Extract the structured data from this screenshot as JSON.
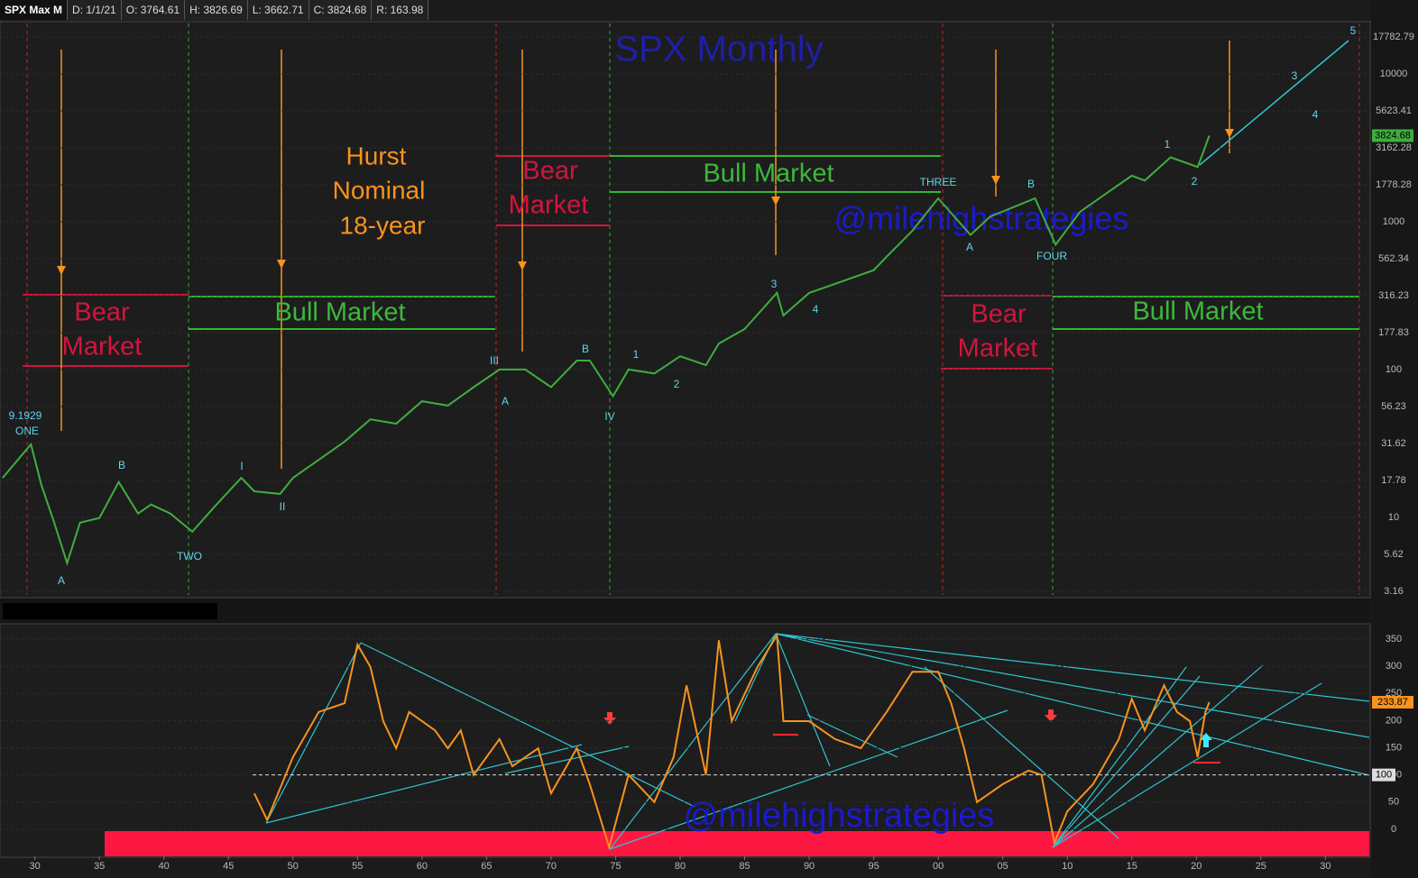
{
  "header": {
    "symbol": "SPX Max M",
    "fields": [
      "D: 1/1/21",
      "O: 3764.61",
      "H: 3826.69",
      "L: 3662.71",
      "C: 3824.68",
      "R: 163.98"
    ]
  },
  "chart_data": [
    {
      "type": "line",
      "title": "SPX Monthly",
      "watermark": "@milehighstrategies",
      "log_scale": true,
      "grid": true,
      "color": "#3fae3f",
      "xlim": [
        1927.3,
        2033.4
      ],
      "ylim": [
        2.9,
        22600
      ],
      "yticks": [
        3.16,
        5.62,
        10,
        17.78,
        31.62,
        56.23,
        100,
        177.83,
        316.23,
        562.34,
        1000,
        1778.28,
        3162.28,
        5623.41,
        10000,
        17782.79
      ],
      "x": [
        1927.5,
        1929.7,
        1930.5,
        1931.5,
        1932.5,
        1933.5,
        1935,
        1936.5,
        1938,
        1939,
        1940.5,
        1942.2,
        1944,
        1946,
        1947,
        1949,
        1950,
        1952,
        1954,
        1956,
        1958,
        1960,
        1962,
        1964,
        1966,
        1968,
        1970,
        1972,
        1973,
        1974.8,
        1976,
        1978,
        1980,
        1982,
        1983,
        1985,
        1987.5,
        1988,
        1990,
        1992,
        1995,
        1996,
        1998,
        2000,
        2002.5,
        2004,
        2007.5,
        2009.1,
        2011,
        2013,
        2015,
        2016,
        2018,
        2020.1,
        2020.5,
        2021
      ],
      "values": [
        18.5,
        31.2,
        16.6,
        9.2,
        4.9,
        9.2,
        9.9,
        17.3,
        10.6,
        12.2,
        10.6,
        8,
        12,
        18.5,
        15,
        14.4,
        18.5,
        24.5,
        32.5,
        46,
        43,
        61,
        57,
        76,
        100,
        100,
        76,
        115,
        115,
        66,
        100,
        94,
        123,
        107,
        150,
        188,
        330,
        232,
        330,
        380,
        470,
        580,
        870,
        1440,
        815,
        1080,
        1440,
        700,
        1170,
        1550,
        2050,
        1900,
        2730,
        2350,
        2900,
        3824.68
      ],
      "annotations": [
        "Hurst",
        "Nominal",
        "18-year",
        "Bear",
        "Market",
        "Bull Market",
        "Bear",
        "Market",
        "Bull Market",
        "Bear",
        "Market",
        "Bull Market",
        "9.1929",
        "ONE",
        "A",
        "B",
        "TWO",
        "I",
        "II",
        "III",
        "A",
        "B",
        "IV",
        "1",
        "2",
        "3",
        "4",
        "THREE",
        "A",
        "B",
        "FOUR",
        "1",
        "2",
        "3",
        "4",
        "5"
      ]
    },
    {
      "type": "line",
      "watermark": "@milehighstrategies",
      "grid": true,
      "color": "#f7931e",
      "reference_line": 100,
      "xlim": [
        1927.3,
        2033.4
      ],
      "ylim": [
        -50,
        370
      ],
      "xticks": [
        {
          "value": 1930,
          "label": "30"
        },
        {
          "value": 1935,
          "label": "35"
        },
        {
          "value": 1940,
          "label": "40"
        },
        {
          "value": 1945,
          "label": "45"
        },
        {
          "value": 1950,
          "label": "50"
        },
        {
          "value": 1955,
          "label": "55"
        },
        {
          "value": 1960,
          "label": "60"
        },
        {
          "value": 1965,
          "label": "65"
        },
        {
          "value": 1970,
          "label": "70"
        },
        {
          "value": 1975,
          "label": "75"
        },
        {
          "value": 1980,
          "label": "80"
        },
        {
          "value": 1985,
          "label": "85"
        },
        {
          "value": 1990,
          "label": "90"
        },
        {
          "value": 1995,
          "label": "95"
        },
        {
          "value": 2000,
          "label": "00"
        },
        {
          "value": 2005,
          "label": "05"
        },
        {
          "value": 2010,
          "label": "10"
        },
        {
          "value": 2015,
          "label": "15"
        },
        {
          "value": 2020,
          "label": "20"
        },
        {
          "value": 2025,
          "label": "25"
        },
        {
          "value": 2030,
          "label": "30"
        }
      ],
      "yticks": [
        0,
        50,
        100,
        150,
        200,
        250,
        300,
        350
      ],
      "x": [
        1947,
        1948,
        1950,
        1952,
        1954,
        1955,
        1956,
        1957,
        1958,
        1959,
        1961,
        1962,
        1963,
        1964,
        1966,
        1967,
        1969,
        1970,
        1972,
        1973,
        1974.5,
        1976,
        1978,
        1979.5,
        1980.5,
        1982,
        1983,
        1984,
        1986,
        1987.5,
        1988,
        1990,
        1992,
        1994,
        1996,
        1998,
        2000,
        2001,
        2002,
        2003,
        2005,
        2007,
        2008,
        2009,
        2010,
        2012,
        2014,
        2015,
        2016,
        2017.5,
        2018.5,
        2019.5,
        2020.1,
        2020.7,
        2021
      ],
      "values": [
        66,
        17,
        133,
        216,
        232,
        340,
        299,
        199,
        149,
        216,
        182,
        149,
        182,
        100,
        166,
        116,
        149,
        66,
        149,
        83,
        -33,
        100,
        50,
        133,
        265,
        100,
        348,
        199,
        299,
        357,
        199,
        199,
        166,
        149,
        216,
        290,
        290,
        232,
        149,
        50,
        83,
        108,
        100,
        -25,
        33,
        83,
        166,
        240,
        182,
        265,
        216,
        199,
        133,
        216,
        233.87
      ]
    }
  ]
}
